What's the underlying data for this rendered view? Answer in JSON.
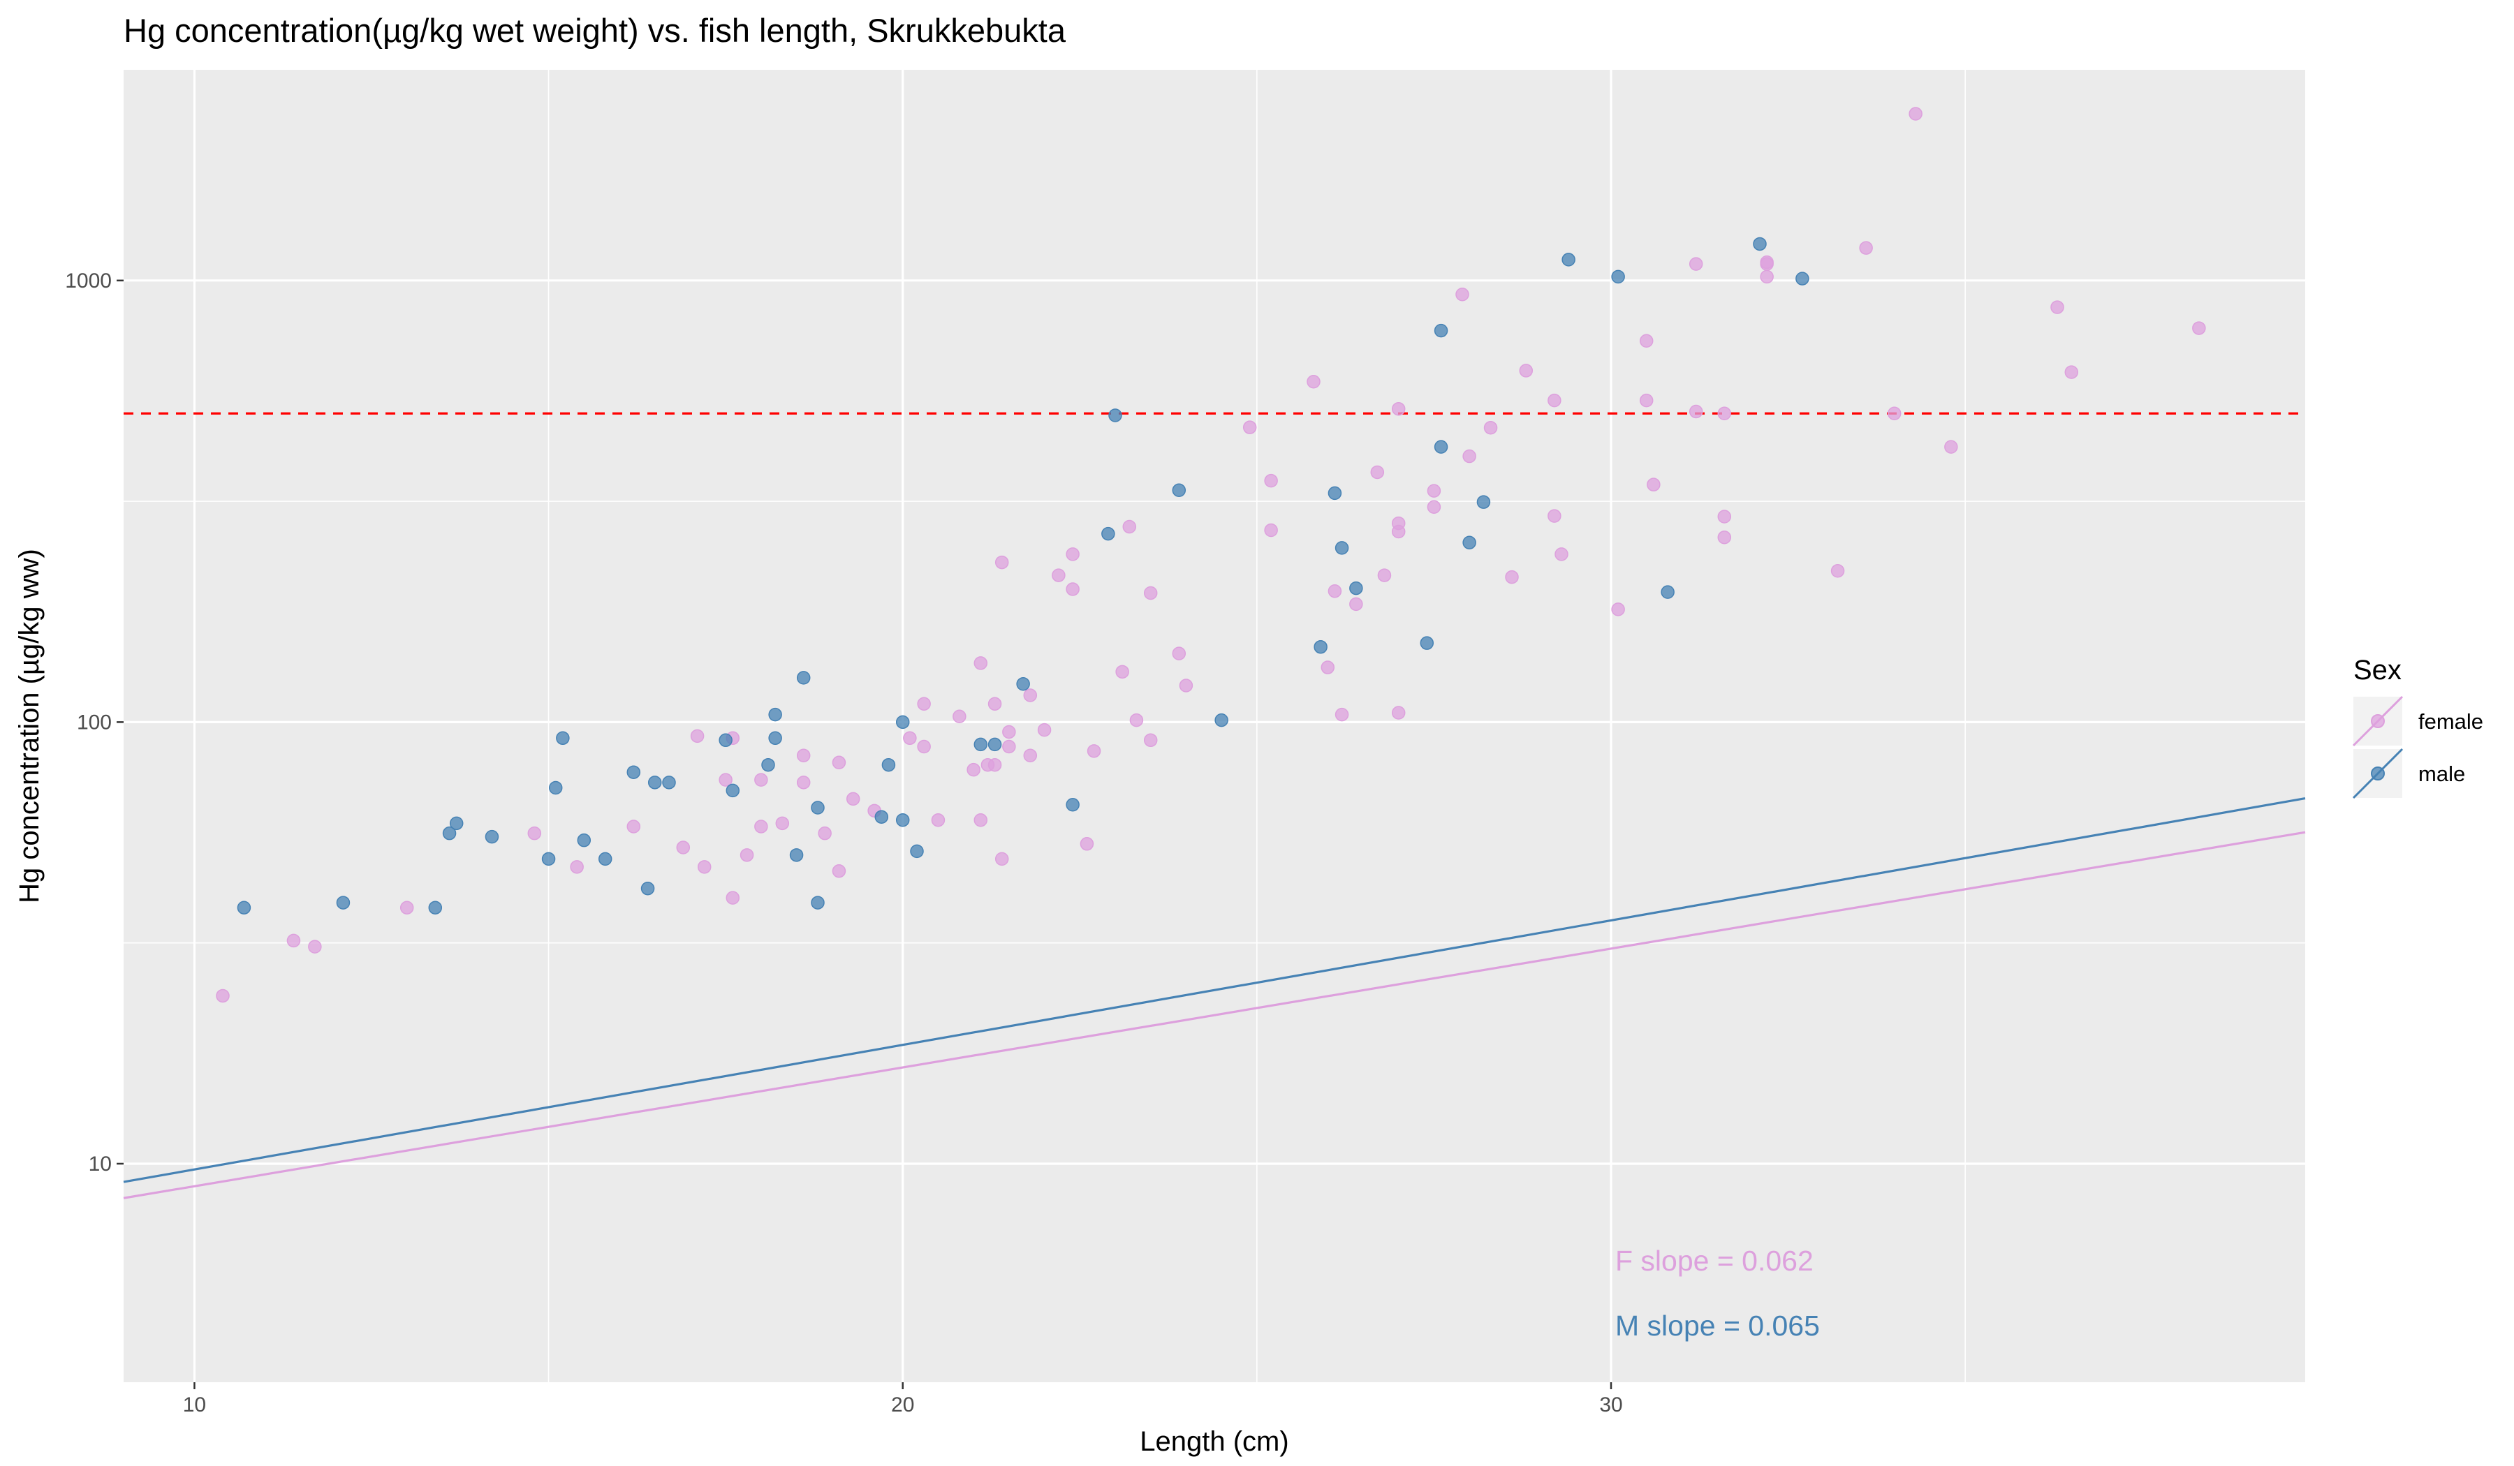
{
  "chart_data": {
    "type": "scatter",
    "title": "Hg concentration(µg/kg wet weight) vs. fish length, Skrukkebukta",
    "xlabel": "Length (cm)",
    "ylabel": "Hg concentration (µg/kg ww)",
    "xlim": [
      9,
      39.8
    ],
    "ylim": [
      3.2,
      3000
    ],
    "y_scale": "log10",
    "x_ticks": [
      10,
      20,
      30
    ],
    "x_ticks_minor": [
      15,
      25,
      35
    ],
    "y_ticks": [
      10,
      100,
      1000
    ],
    "y_ticks_minor": [
      3.162,
      31.62,
      316.2
    ],
    "grid": true,
    "panel_background": "#ebebeb",
    "legend": {
      "title": "Sex",
      "position": "right",
      "entries": [
        {
          "label": "female",
          "color": "#DDA0DD"
        },
        {
          "label": "male",
          "color": "#4682B4"
        }
      ]
    },
    "reference_line": {
      "y": 500,
      "color": "#FF0000",
      "style": "dashed"
    },
    "series": [
      {
        "name": "female",
        "color": "#DDA0DD",
        "fit": {
          "intercept_log10": 0.68,
          "slope_log10": 0.0269
        },
        "points": [
          [
            10.4,
            24
          ],
          [
            11.4,
            32
          ],
          [
            11.7,
            31
          ],
          [
            13,
            38
          ],
          [
            14.8,
            56
          ],
          [
            15.4,
            47
          ],
          [
            16.2,
            58
          ],
          [
            16.9,
            52
          ],
          [
            17.1,
            93
          ],
          [
            17.2,
            47
          ],
          [
            17.5,
            74
          ],
          [
            17.6,
            92
          ],
          [
            17.6,
            40
          ],
          [
            17.8,
            50
          ],
          [
            18,
            74
          ],
          [
            18,
            58
          ],
          [
            18.3,
            59
          ],
          [
            18.6,
            84
          ],
          [
            18.6,
            73
          ],
          [
            18.9,
            56
          ],
          [
            19.1,
            81
          ],
          [
            19.1,
            46
          ],
          [
            19.3,
            67
          ],
          [
            19.6,
            63
          ],
          [
            20.1,
            92
          ],
          [
            20.3,
            110
          ],
          [
            20.3,
            88
          ],
          [
            20.5,
            60
          ],
          [
            20.8,
            103
          ],
          [
            21,
            78
          ],
          [
            21.1,
            136
          ],
          [
            21.1,
            60
          ],
          [
            21.2,
            80
          ],
          [
            21.3,
            110
          ],
          [
            21.3,
            80
          ],
          [
            21.4,
            230
          ],
          [
            21.4,
            49
          ],
          [
            21.5,
            95
          ],
          [
            21.5,
            88
          ],
          [
            21.8,
            115
          ],
          [
            21.8,
            84
          ],
          [
            22,
            96
          ],
          [
            22.2,
            215
          ],
          [
            22.4,
            240
          ],
          [
            22.4,
            200
          ],
          [
            22.6,
            53
          ],
          [
            22.7,
            86
          ],
          [
            23.1,
            130
          ],
          [
            23.2,
            277
          ],
          [
            23.3,
            101
          ],
          [
            23.5,
            196
          ],
          [
            23.5,
            91
          ],
          [
            23.9,
            143
          ],
          [
            24,
            121
          ],
          [
            24.9,
            465
          ],
          [
            25.2,
            352
          ],
          [
            25.2,
            272
          ],
          [
            25.8,
            590
          ],
          [
            26,
            133
          ],
          [
            26.1,
            198
          ],
          [
            26.2,
            104
          ],
          [
            26.4,
            185
          ],
          [
            26.7,
            368
          ],
          [
            26.8,
            215
          ],
          [
            27,
            512
          ],
          [
            27,
            282
          ],
          [
            27,
            270
          ],
          [
            27,
            105
          ],
          [
            27.5,
            334
          ],
          [
            27.5,
            307
          ],
          [
            27.9,
            930
          ],
          [
            28,
            400
          ],
          [
            28.3,
            464
          ],
          [
            28.6,
            213
          ],
          [
            28.8,
            625
          ],
          [
            29.2,
            535
          ],
          [
            29.2,
            293
          ],
          [
            29.3,
            240
          ],
          [
            30.1,
            180
          ],
          [
            30.5,
            730
          ],
          [
            30.5,
            535
          ],
          [
            30.6,
            345
          ],
          [
            31.2,
            1090
          ],
          [
            31.2,
            505
          ],
          [
            31.6,
            500
          ],
          [
            31.6,
            292
          ],
          [
            31.6,
            262
          ],
          [
            32.2,
            1100
          ],
          [
            32.2,
            1090
          ],
          [
            32.2,
            1020
          ],
          [
            33.2,
            220
          ],
          [
            33.6,
            1185
          ],
          [
            34,
            500
          ],
          [
            34.3,
            2385
          ],
          [
            34.8,
            420
          ],
          [
            36.3,
            870
          ],
          [
            36.5,
            620
          ],
          [
            38.3,
            780
          ]
        ]
      },
      {
        "name": "male",
        "color": "#4682B4",
        "fit": {
          "intercept_log10": 0.705,
          "slope_log10": 0.0282
        },
        "points": [
          [
            10.7,
            38
          ],
          [
            12.1,
            39
          ],
          [
            13.4,
            38
          ],
          [
            13.6,
            56
          ],
          [
            13.7,
            59
          ],
          [
            14.2,
            55
          ],
          [
            15,
            49
          ],
          [
            15.1,
            71
          ],
          [
            15.2,
            92
          ],
          [
            15.5,
            54
          ],
          [
            15.8,
            49
          ],
          [
            16.2,
            77
          ],
          [
            16.4,
            42
          ],
          [
            16.5,
            73
          ],
          [
            16.7,
            73
          ],
          [
            17.5,
            91
          ],
          [
            17.6,
            70
          ],
          [
            18.1,
            80
          ],
          [
            18.2,
            104
          ],
          [
            18.2,
            92
          ],
          [
            18.5,
            50
          ],
          [
            18.6,
            126
          ],
          [
            18.8,
            39
          ],
          [
            18.8,
            64
          ],
          [
            19.7,
            61
          ],
          [
            19.8,
            80
          ],
          [
            20,
            100
          ],
          [
            20,
            60
          ],
          [
            20.2,
            51
          ],
          [
            21.1,
            89
          ],
          [
            21.3,
            89
          ],
          [
            21.7,
            122
          ],
          [
            22.4,
            65
          ],
          [
            22.9,
            267
          ],
          [
            23,
            495
          ],
          [
            23.9,
            335
          ],
          [
            24.5,
            101
          ],
          [
            25.9,
            148
          ],
          [
            26.1,
            330
          ],
          [
            26.2,
            248
          ],
          [
            26.4,
            201
          ],
          [
            27.4,
            151
          ],
          [
            27.6,
            770
          ],
          [
            27.6,
            420
          ],
          [
            28,
            255
          ],
          [
            28.2,
            315
          ],
          [
            29.4,
            1115
          ],
          [
            30.1,
            1020
          ],
          [
            30.8,
            197
          ],
          [
            32.1,
            1210
          ],
          [
            32.7,
            1010
          ]
        ]
      }
    ],
    "annotations": [
      {
        "text": "F slope =  0.062",
        "color": "#DDA0DD"
      },
      {
        "text": "M slope =  0.065",
        "color": "#4682B4"
      }
    ]
  }
}
